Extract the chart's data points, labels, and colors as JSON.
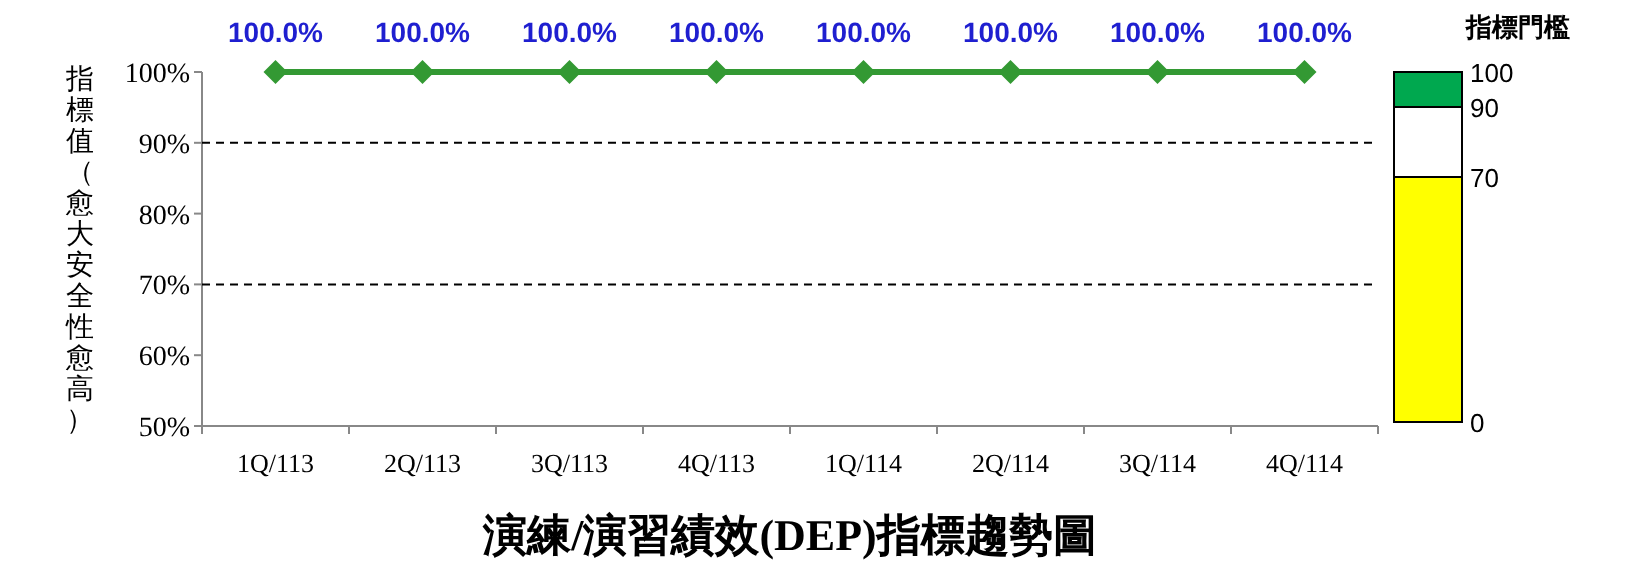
{
  "chart_data": [
    {
      "type": "line",
      "title": "演練/演習績效(DEP)指標趨勢圖",
      "ylabel": "指標值（愈大安全性愈高）",
      "categories": [
        "1Q/113",
        "2Q/113",
        "3Q/113",
        "4Q/113",
        "1Q/114",
        "2Q/114",
        "3Q/114",
        "4Q/114"
      ],
      "series": [
        {
          "color": "#339933",
          "values": [
            100,
            100,
            100,
            100,
            100,
            100,
            100,
            100
          ],
          "value_labels": [
            "100.0%",
            "100.0%",
            "100.0%",
            "100.0%",
            "100.0%",
            "100.0%",
            "100.0%",
            "100.0%"
          ]
        }
      ],
      "marker": "diamond",
      "line_style": "solid",
      "ylim": [
        50,
        100
      ],
      "yticks": [
        {
          "value": 50,
          "label": "50%"
        },
        {
          "value": 60,
          "label": "60%"
        },
        {
          "value": 70,
          "label": "70%"
        },
        {
          "value": 80,
          "label": "80%"
        },
        {
          "value": 90,
          "label": "90%"
        },
        {
          "value": 100,
          "label": "100%"
        }
      ],
      "ref_lines": [
        {
          "axis": "y",
          "value": 90,
          "line_style": "dashed",
          "color": "#000000"
        },
        {
          "axis": "y",
          "value": 70,
          "line_style": "dashed",
          "color": "#000000"
        }
      ]
    },
    {
      "type": "bar",
      "title": "指標門檻",
      "categories": [
        null
      ],
      "stacked": true,
      "series": [
        {
          "color": "#ffff00",
          "values": [
            70
          ]
        },
        {
          "color": "#ffffff",
          "values": [
            20
          ]
        },
        {
          "color": "#00a84f",
          "values": [
            10
          ]
        }
      ],
      "ylim": [
        0,
        100
      ],
      "yticks": [
        0,
        70,
        90,
        100
      ]
    }
  ]
}
